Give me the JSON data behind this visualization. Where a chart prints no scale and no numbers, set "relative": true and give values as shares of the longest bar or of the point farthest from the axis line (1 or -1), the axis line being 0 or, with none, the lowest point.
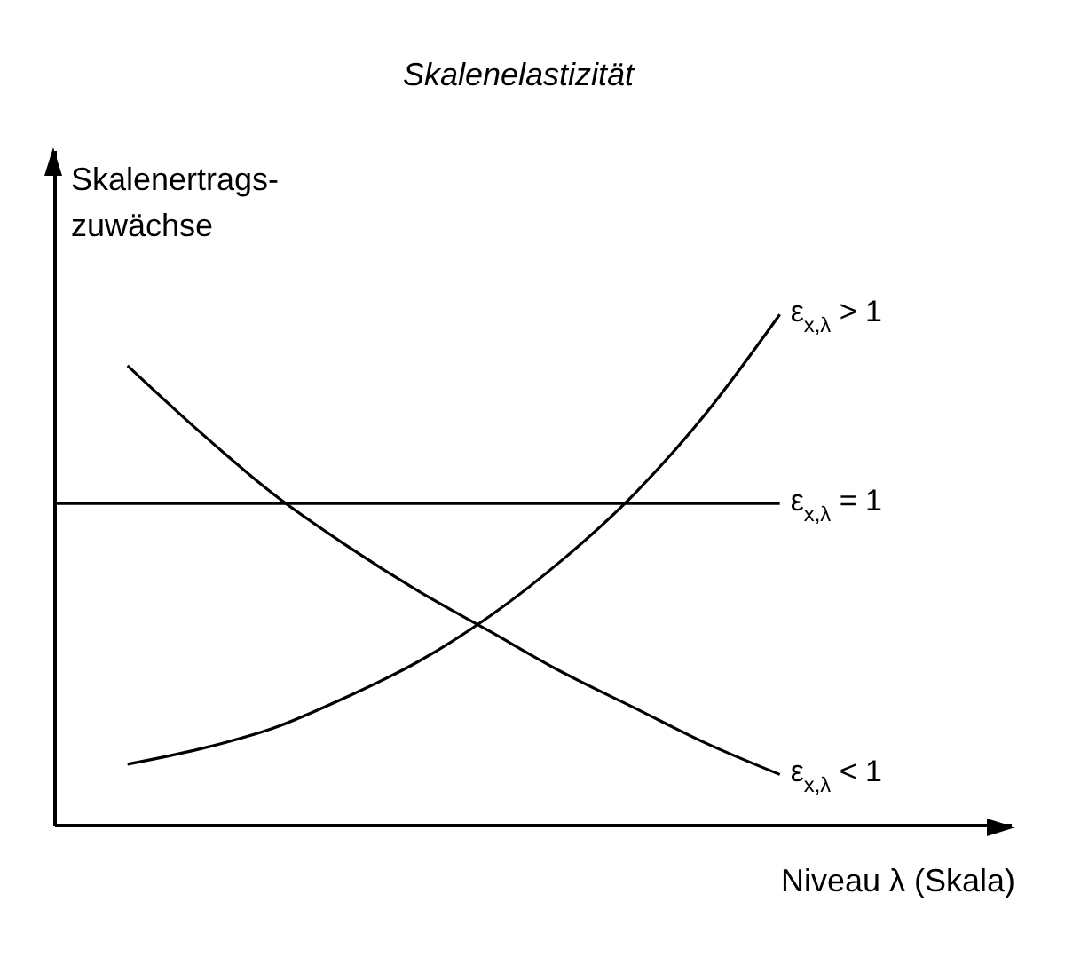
{
  "chart_data": {
    "type": "line",
    "title": "Skalenelastizität",
    "xlabel": "Niveau λ (Skala)",
    "ylabel": "Skalenertrags-\nzuwächse",
    "relative": true,
    "marker": "none",
    "categories": [
      null,
      null,
      null,
      null,
      null,
      null,
      null,
      null,
      null,
      null,
      null
    ],
    "series": [
      {
        "name": "ε$_{x,λ}$ > 1",
        "color": "#000000",
        "values": [
          null,
          0.12,
          0.15,
          0.19,
          0.25,
          0.32,
          0.41,
          0.52,
          0.65,
          0.81,
          1.0
        ]
      },
      {
        "name": "ε$_{x,λ}$ = 1",
        "color": "#000000",
        "values": [
          0.63,
          0.63,
          0.63,
          0.63,
          0.63,
          0.63,
          0.63,
          0.63,
          0.63,
          0.63,
          0.63
        ]
      },
      {
        "name": "ε$_{x,λ}$ < 1",
        "color": "#000000",
        "values": [
          null,
          0.9,
          0.77,
          0.65,
          0.55,
          0.46,
          0.38,
          0.3,
          0.23,
          0.16,
          0.1
        ]
      }
    ]
  }
}
